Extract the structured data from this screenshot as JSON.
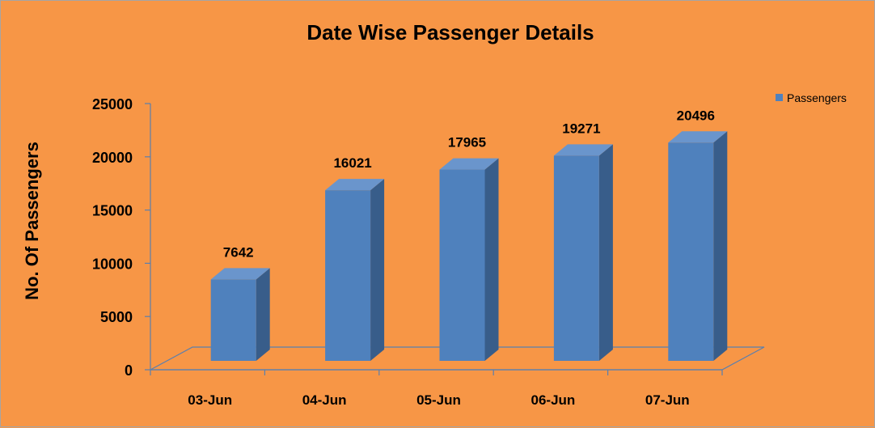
{
  "chart_data": {
    "type": "bar",
    "title": "Date Wise Passenger Details",
    "xlabel": "",
    "ylabel": "No. Of Passengers",
    "categories": [
      "03-Jun",
      "04-Jun",
      "05-Jun",
      "06-Jun",
      "07-Jun"
    ],
    "series": [
      {
        "name": "Passengers",
        "values": [
          7642,
          16021,
          17965,
          19271,
          20496
        ]
      }
    ],
    "ylim": [
      0,
      25000
    ],
    "yticks": [
      0,
      5000,
      10000,
      15000,
      20000,
      25000
    ],
    "legend_position": "top-right",
    "grid": false,
    "colors": {
      "background": "#f79646",
      "bar_front": "#4f81bd",
      "bar_side": "#385d8a",
      "bar_top": "#6a95cc",
      "axis": "#5a7fae"
    }
  }
}
